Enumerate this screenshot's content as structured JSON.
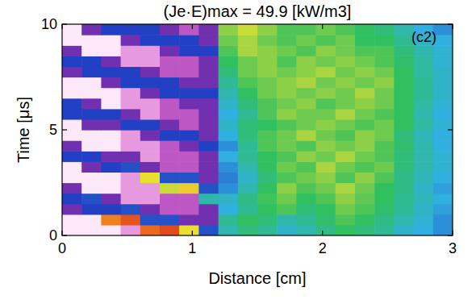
{
  "chart_data": {
    "type": "heatmap",
    "title": "(Je·E)max = 49.9 [kW/m3]",
    "annotation": "(c2)",
    "x_label": "Distance [cm]",
    "y_label": "Time [μs]",
    "xlim": [
      0,
      3
    ],
    "ylim": [
      0,
      10
    ],
    "xticks": [
      0,
      1,
      2,
      3
    ],
    "yticks": [
      0,
      5,
      10
    ],
    "color_range": [
      -49.9,
      49.9
    ],
    "x": [
      0.075,
      0.225,
      0.375,
      0.525,
      0.675,
      0.825,
      0.975,
      1.125,
      1.275,
      1.425,
      1.575,
      1.725,
      1.875,
      2.025,
      2.175,
      2.325,
      2.475,
      2.625,
      2.775,
      2.925
    ],
    "y": [
      0.25,
      0.75,
      1.25,
      1.75,
      2.25,
      2.75,
      3.25,
      3.75,
      4.25,
      4.75,
      5.25,
      5.75,
      6.25,
      6.75,
      7.25,
      7.75,
      8.25,
      8.75,
      9.25,
      9.75
    ],
    "z": [
      [
        -45,
        -45,
        -45,
        -32,
        42,
        45,
        30,
        2,
        12,
        16,
        14,
        10,
        12,
        15,
        18,
        16,
        14,
        10,
        8,
        6
      ],
      [
        -45,
        -45,
        40,
        44,
        2,
        2,
        -10,
        -10,
        14,
        18,
        16,
        12,
        14,
        17,
        20,
        18,
        15,
        12,
        9,
        6
      ],
      [
        -10,
        1,
        1,
        2,
        -10,
        -22,
        -22,
        -10,
        8,
        14,
        18,
        20,
        16,
        18,
        22,
        20,
        17,
        14,
        10,
        7
      ],
      [
        1,
        2,
        -10,
        -32,
        -32,
        -22,
        -22,
        12,
        10,
        15,
        19,
        22,
        18,
        20,
        24,
        21,
        18,
        14,
        11,
        8
      ],
      [
        -10,
        -45,
        -45,
        -32,
        -32,
        28,
        32,
        2,
        6,
        12,
        18,
        24,
        20,
        22,
        26,
        22,
        18,
        15,
        10,
        7
      ],
      [
        -45,
        -45,
        -45,
        -32,
        30,
        2,
        2,
        -10,
        5,
        10,
        16,
        20,
        22,
        24,
        20,
        24,
        20,
        15,
        11,
        8
      ],
      [
        -45,
        -10,
        1,
        2,
        -10,
        -22,
        -22,
        -10,
        6,
        12,
        18,
        22,
        20,
        26,
        22,
        20,
        22,
        16,
        12,
        9
      ],
      [
        1,
        1,
        -10,
        -10,
        -32,
        -22,
        -22,
        -10,
        8,
        14,
        18,
        20,
        24,
        22,
        26,
        22,
        20,
        16,
        12,
        9
      ],
      [
        -10,
        -45,
        -45,
        -32,
        -32,
        -22,
        -10,
        1,
        6,
        14,
        20,
        22,
        20,
        24,
        22,
        24,
        20,
        17,
        12,
        8
      ],
      [
        -45,
        -45,
        -45,
        -32,
        -10,
        1,
        1,
        -10,
        8,
        16,
        20,
        22,
        26,
        22,
        20,
        24,
        22,
        16,
        11,
        8
      ],
      [
        -45,
        -10,
        -10,
        1,
        1,
        -10,
        -22,
        -10,
        10,
        16,
        18,
        20,
        22,
        24,
        22,
        20,
        22,
        18,
        13,
        9
      ],
      [
        1,
        1,
        1,
        -10,
        -32,
        -22,
        -22,
        -10,
        8,
        14,
        20,
        24,
        22,
        22,
        26,
        22,
        20,
        18,
        12,
        8
      ],
      [
        1,
        -10,
        -45,
        -32,
        -32,
        -22,
        -10,
        -10,
        10,
        16,
        20,
        22,
        24,
        20,
        22,
        24,
        22,
        18,
        13,
        9
      ],
      [
        -45,
        -45,
        -45,
        -32,
        -10,
        1,
        1,
        1,
        12,
        18,
        22,
        24,
        22,
        24,
        22,
        26,
        22,
        18,
        14,
        10
      ],
      [
        -45,
        -45,
        -10,
        1,
        1,
        1,
        -10,
        -10,
        14,
        20,
        22,
        24,
        26,
        22,
        24,
        22,
        24,
        18,
        14,
        10
      ],
      [
        -10,
        1,
        1,
        1,
        -10,
        -22,
        -22,
        -10,
        16,
        22,
        24,
        22,
        24,
        26,
        22,
        24,
        22,
        18,
        13,
        10
      ],
      [
        1,
        1,
        -10,
        -32,
        -32,
        -22,
        -22,
        -10,
        18,
        22,
        24,
        20,
        24,
        22,
        24,
        22,
        20,
        17,
        13,
        9
      ],
      [
        -10,
        -45,
        -45,
        -32,
        -32,
        -10,
        1,
        1,
        20,
        26,
        24,
        22,
        20,
        24,
        22,
        20,
        20,
        16,
        12,
        9
      ],
      [
        -45,
        -45,
        -45,
        -10,
        1,
        1,
        1,
        -10,
        22,
        26,
        22,
        20,
        22,
        20,
        22,
        18,
        18,
        14,
        10,
        8
      ],
      [
        -45,
        -10,
        1,
        1,
        1,
        -10,
        -22,
        -10,
        24,
        28,
        24,
        20,
        20,
        22,
        20,
        18,
        16,
        12,
        8,
        6
      ]
    ]
  }
}
